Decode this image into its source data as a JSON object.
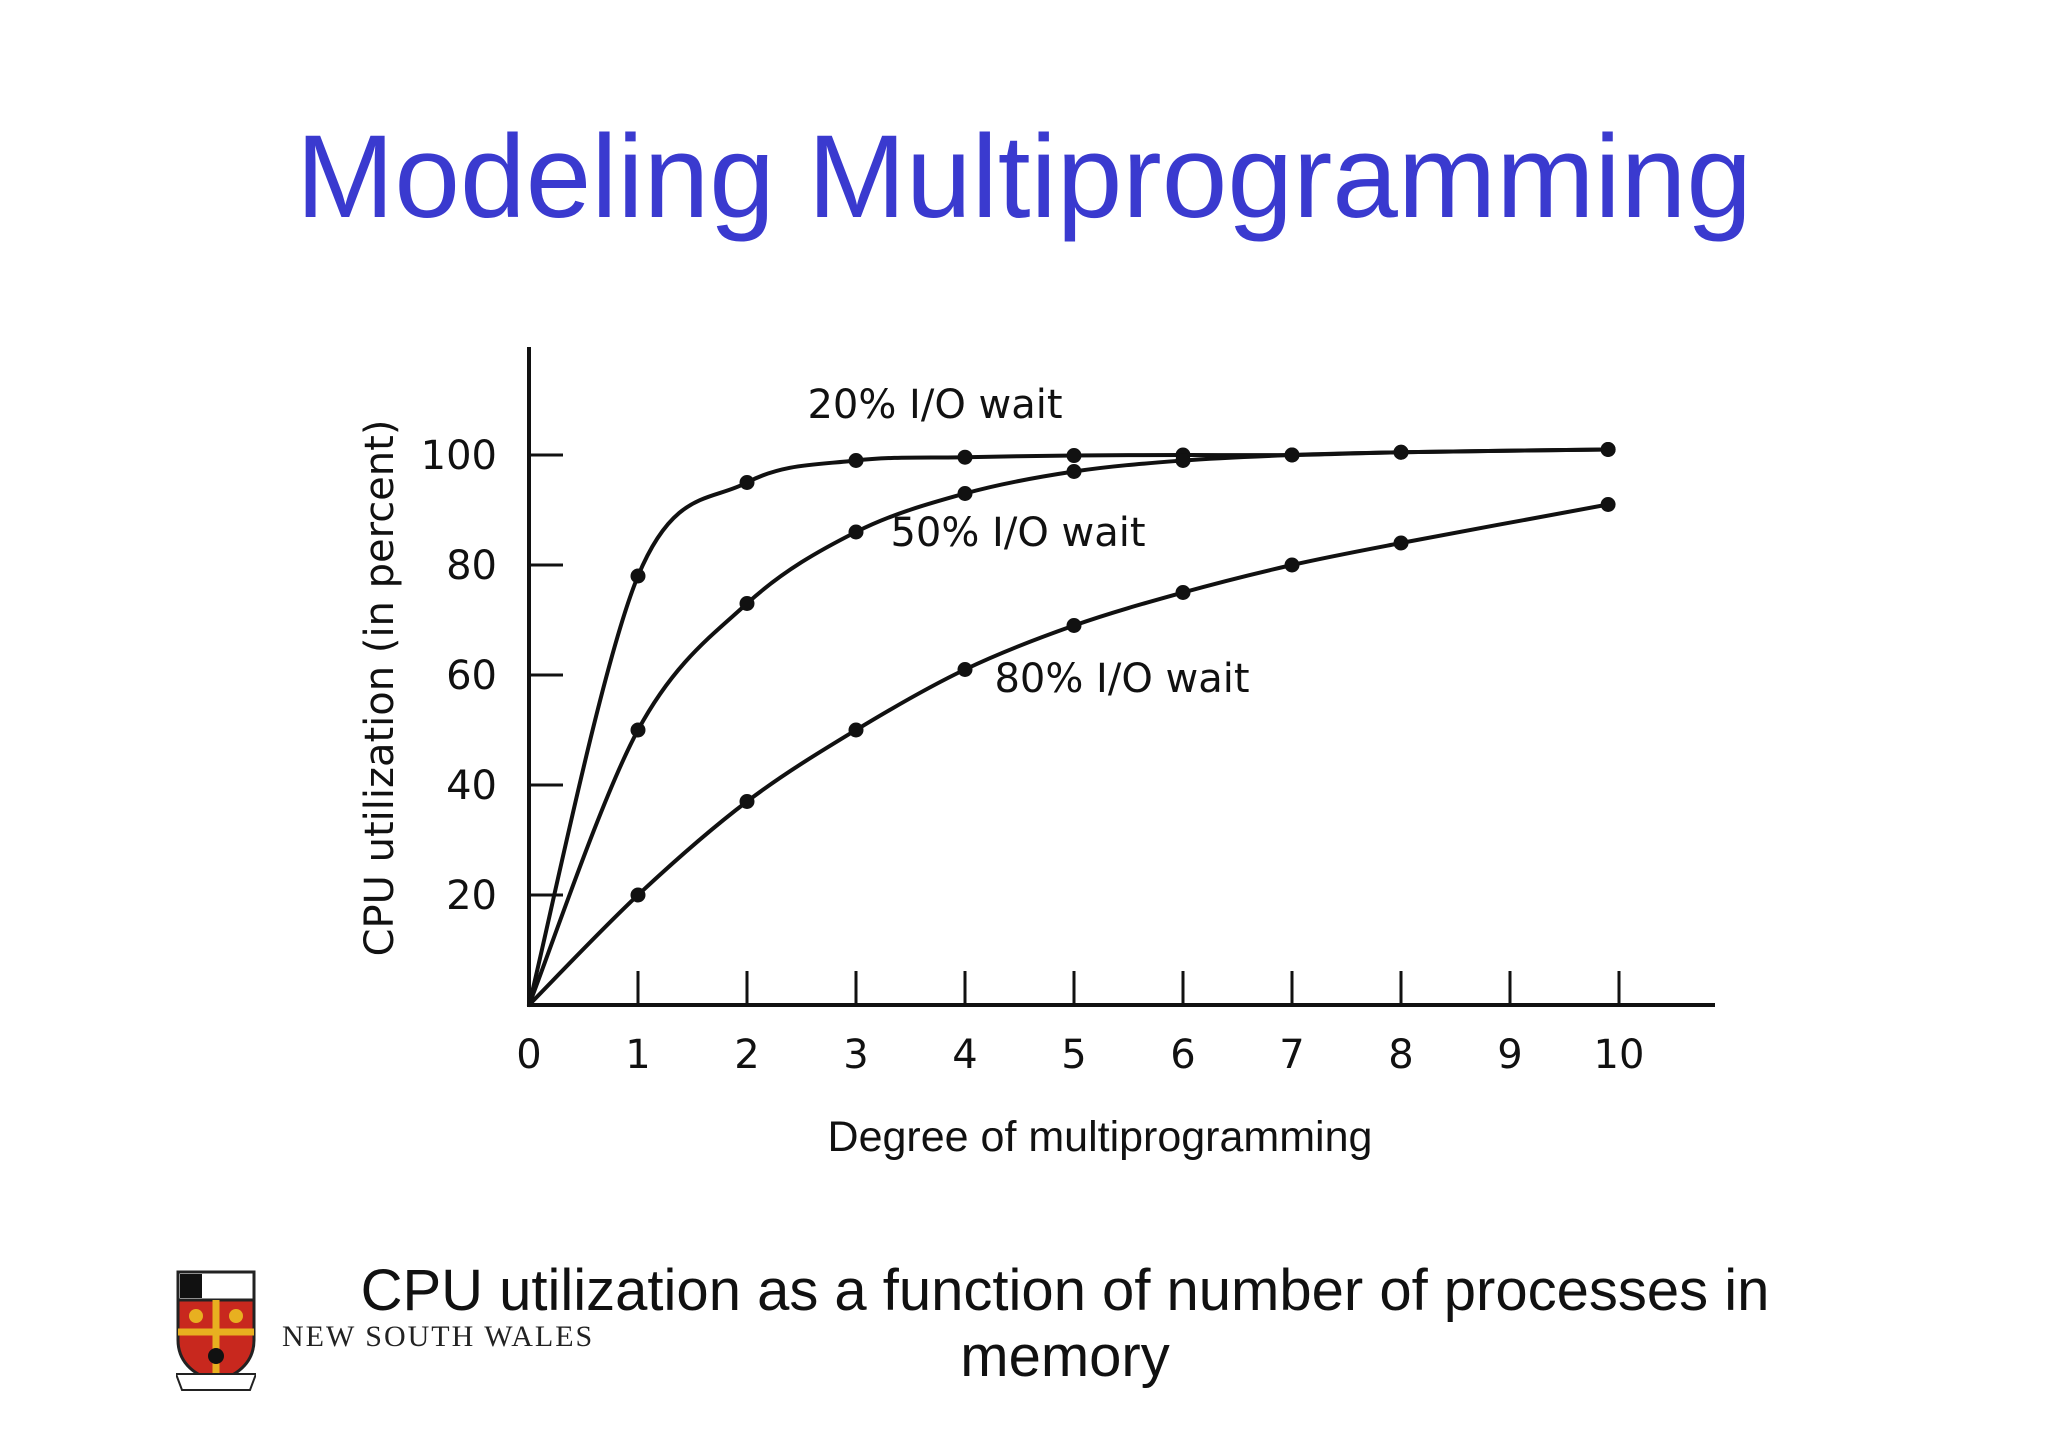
{
  "slide": {
    "title": "Modeling Multiprogramming",
    "caption": "CPU utilization as a function of number of processes in memory",
    "logo_text": "NEW SOUTH WALES"
  },
  "colors": {
    "title": "#3a3acf",
    "ink": "#111111",
    "logo_red": "#c8281e",
    "logo_gold": "#e8b020"
  },
  "chart_data": {
    "type": "line",
    "xlabel": "Degree of multiprogramming",
    "ylabel": "CPU utilization (in percent)",
    "xlim": [
      0,
      10.8
    ],
    "ylim": [
      0,
      118
    ],
    "x_ticks": [
      0,
      1,
      2,
      3,
      4,
      5,
      6,
      7,
      8,
      9,
      10
    ],
    "y_ticks": [
      20,
      40,
      60,
      80,
      100
    ],
    "grid": false,
    "series": [
      {
        "name": "20% I/O wait",
        "x": [
          0,
          1,
          2,
          3,
          4,
          5,
          6,
          7,
          8,
          9.9
        ],
        "y": [
          0,
          78,
          95,
          99,
          99.6,
          99.9,
          100,
          100,
          100.5,
          101
        ]
      },
      {
        "name": "50% I/O wait",
        "x": [
          0,
          1,
          2,
          3,
          4,
          5,
          6,
          7,
          8,
          9.9
        ],
        "y": [
          0,
          50,
          73,
          86,
          93,
          97,
          99,
          100,
          100.5,
          101
        ]
      },
      {
        "name": "80% I/O wait",
        "x": [
          0,
          1,
          2,
          3,
          4,
          5,
          6,
          7,
          8,
          9.9
        ],
        "y": [
          0,
          20,
          37,
          50,
          61,
          69,
          75,
          80,
          84,
          91
        ]
      }
    ]
  }
}
